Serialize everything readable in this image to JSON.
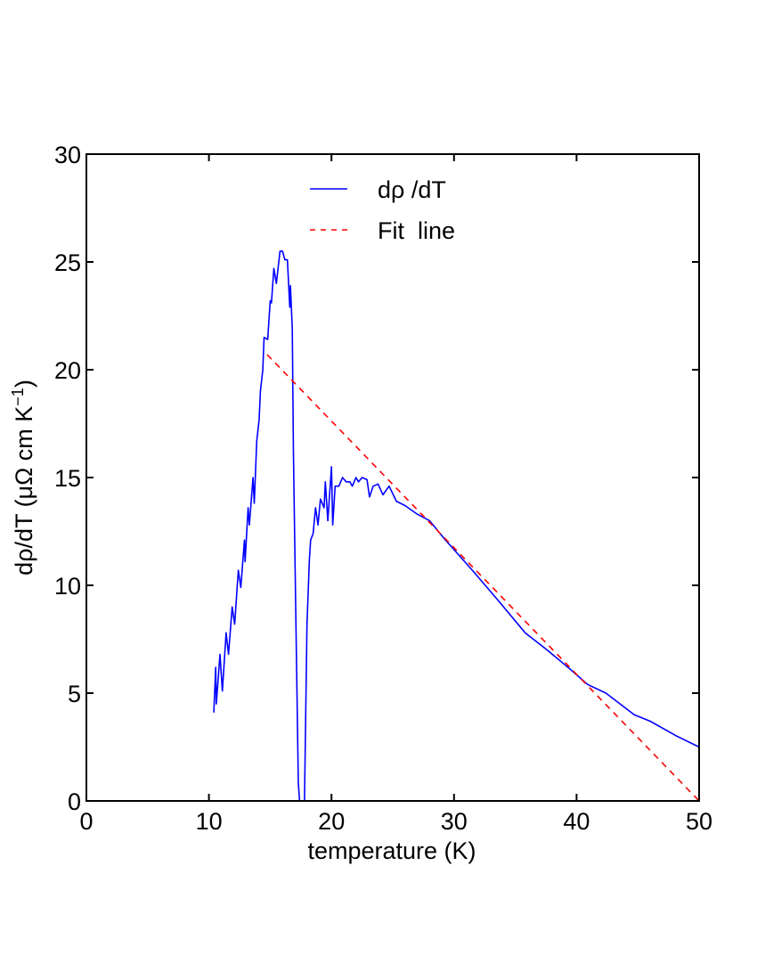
{
  "chart_data": {
    "type": "line",
    "xlabel": "temperature (K)",
    "ylabel": "dρ/dT (μΩ cm K",
    "ylabel_sup": "−1",
    "ylabel_close": ")",
    "xlim": [
      0,
      50
    ],
    "ylim": [
      0,
      30
    ],
    "xticks": [
      "0",
      "10",
      "20",
      "30",
      "40",
      "50"
    ],
    "yticks": [
      "0",
      "5",
      "10",
      "15",
      "20",
      "25",
      "30"
    ],
    "grid": false,
    "legend_position": "top-center",
    "series": [
      {
        "name": "dρ /dT",
        "color": "#0000ff",
        "style": "solid",
        "x": [
          10.4,
          10.55,
          10.6,
          10.9,
          11.1,
          11.4,
          11.6,
          11.9,
          12.1,
          12.4,
          12.6,
          12.9,
          12.95,
          13.2,
          13.3,
          13.6,
          13.7,
          13.9,
          14.1,
          14.2,
          14.4,
          14.5,
          14.8,
          15.0,
          15.1,
          15.3,
          15.5,
          15.8,
          16.0,
          16.2,
          16.4,
          16.6,
          16.65,
          16.8,
          16.9,
          17.1,
          17.3,
          17.4,
          17.8,
          18.0,
          18.2,
          18.3,
          18.5,
          18.7,
          18.9,
          19.1,
          19.4,
          19.5,
          19.7,
          20.0,
          20.1,
          20.3,
          20.6,
          20.9,
          21.2,
          21.5,
          21.7,
          22.0,
          22.2,
          22.5,
          22.9,
          23.1,
          23.4,
          23.8,
          24.2,
          24.7,
          25.3,
          26.0,
          27.0,
          28.0,
          29.3,
          31.5,
          33.6,
          35.8,
          37.6,
          39.5,
          40.9,
          42.4,
          44.7,
          46.0,
          48.2,
          50.0
        ],
        "y": [
          4.1,
          6.2,
          4.5,
          6.8,
          5.1,
          7.8,
          6.8,
          9.0,
          8.2,
          10.7,
          9.9,
          12.1,
          11.1,
          13.6,
          12.8,
          15.0,
          13.8,
          16.7,
          17.7,
          19.0,
          20.0,
          21.5,
          21.4,
          23.2,
          23.1,
          24.7,
          24.0,
          25.5,
          25.5,
          25.1,
          25.1,
          22.9,
          23.9,
          21.9,
          16.1,
          8.2,
          0.8,
          0,
          0,
          8.2,
          11.2,
          12.1,
          12.4,
          13.6,
          12.8,
          14.0,
          13.6,
          14.8,
          13.0,
          15.5,
          12.8,
          14.6,
          14.6,
          15.0,
          14.8,
          14.8,
          14.6,
          15.0,
          14.8,
          15.0,
          14.9,
          14.1,
          14.6,
          14.7,
          14.2,
          14.6,
          13.9,
          13.7,
          13.3,
          13.0,
          12.1,
          10.7,
          9.3,
          7.8,
          7.0,
          6.1,
          5.4,
          5.0,
          4.0,
          3.7,
          3.0,
          2.5
        ]
      },
      {
        "name": "Fit  line",
        "color": "#ff0000",
        "style": "dashed",
        "x": [
          14.75,
          50
        ],
        "y": [
          20.7,
          0
        ]
      }
    ]
  }
}
